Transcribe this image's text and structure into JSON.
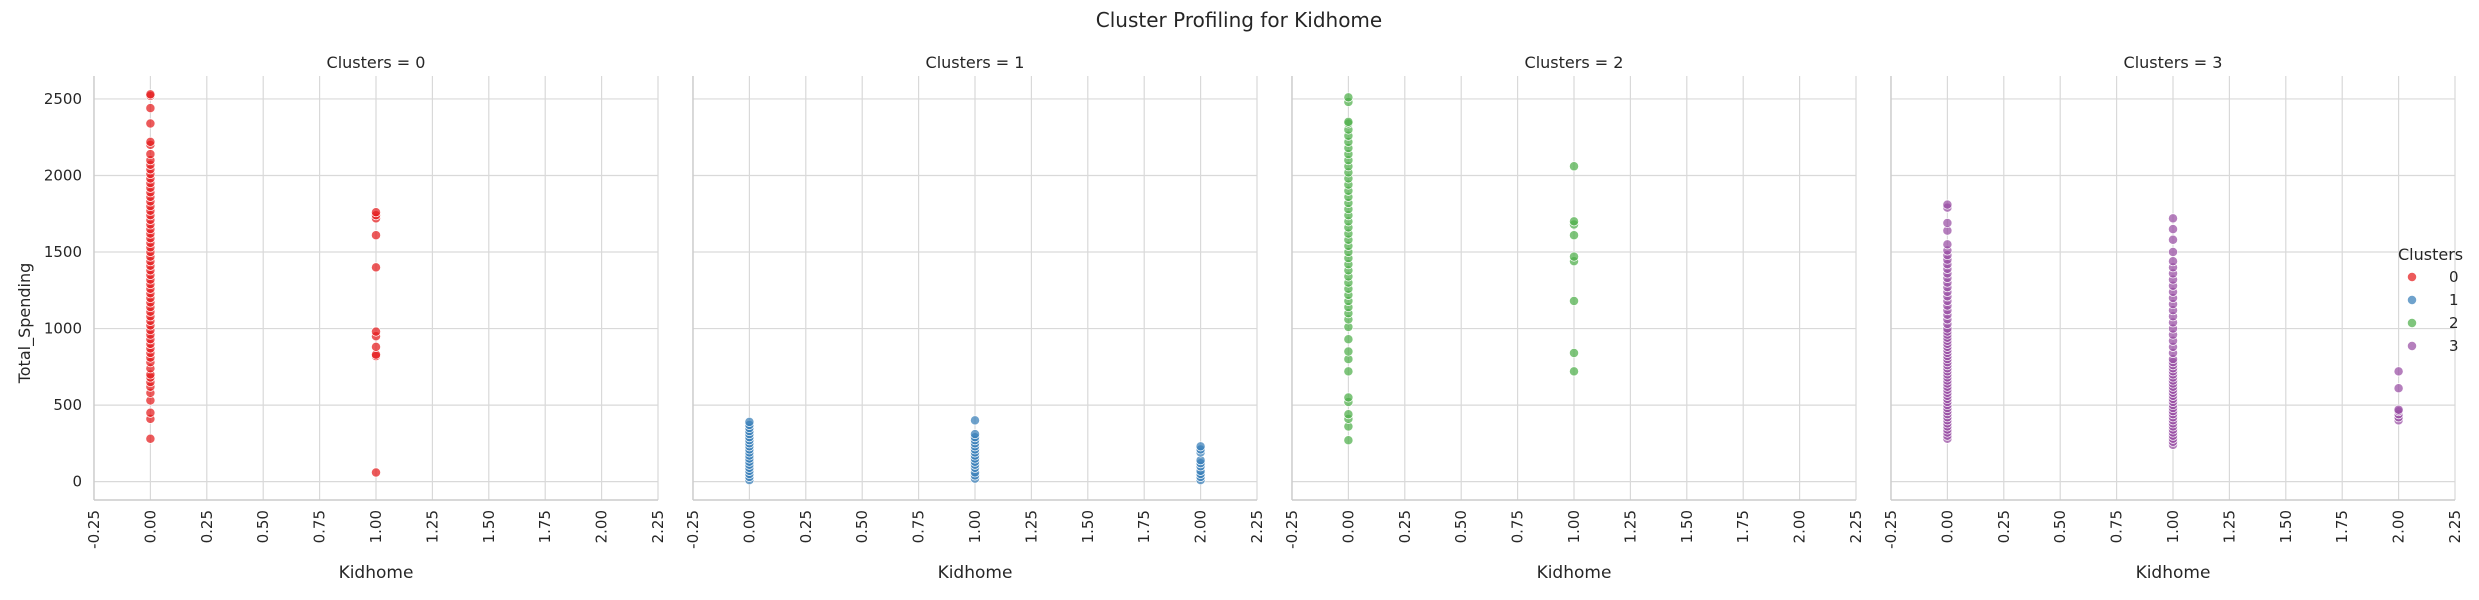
{
  "chart_data": {
    "type": "scatter",
    "suptitle": "Cluster Profiling for Kidhome",
    "xlabel": "Kidhome",
    "ylabel": "Total_Spending",
    "xlim": [
      -0.25,
      2.25
    ],
    "ylim": [
      -120,
      2650
    ],
    "xticks": [
      -0.25,
      0.0,
      0.25,
      0.5,
      0.75,
      1.0,
      1.25,
      1.5,
      1.75,
      2.0,
      2.25
    ],
    "xtick_labels": [
      "-0.25",
      "0.00",
      "0.25",
      "0.50",
      "0.75",
      "1.00",
      "1.25",
      "1.50",
      "1.75",
      "2.00",
      "2.25"
    ],
    "yticks": [
      0,
      500,
      1000,
      1500,
      2000,
      2500
    ],
    "ytick_labels": [
      "0",
      "500",
      "1000",
      "1500",
      "2000",
      "2500"
    ],
    "grid": true,
    "legend": {
      "title": "Clusters",
      "placement": "right",
      "entries": [
        {
          "label": "0",
          "color": "#e41a1c"
        },
        {
          "label": "1",
          "color": "#377eb8"
        },
        {
          "label": "2",
          "color": "#4daf4a"
        },
        {
          "label": "3",
          "color": "#984ea3"
        }
      ]
    },
    "panels": [
      {
        "title": "Clusters = 0",
        "color": "#e41a1c",
        "points": [
          {
            "x": 0,
            "y": [
              280,
              410,
              450,
              530,
              580,
              620,
              650,
              680,
              700,
              740,
              780,
              810,
              840,
              870,
              900,
              930,
              960,
              990,
              1020,
              1050,
              1080,
              1110,
              1140,
              1170,
              1200,
              1230,
              1260,
              1290,
              1320,
              1350,
              1380,
              1410,
              1440,
              1470,
              1500,
              1530,
              1560,
              1590,
              1620,
              1650,
              1680,
              1710,
              1740,
              1770,
              1800,
              1830,
              1860,
              1890,
              1920,
              1950,
              1980,
              2010,
              2040,
              2070,
              2100,
              2140,
              2200,
              2220,
              2340,
              2440,
              2520,
              2530
            ]
          },
          {
            "x": 1,
            "y": [
              60,
              820,
              830,
              880,
              950,
              980,
              1400,
              1610,
              1720,
              1740,
              1760
            ]
          }
        ]
      },
      {
        "title": "Clusters = 1",
        "color": "#377eb8",
        "points": [
          {
            "x": 0,
            "y": [
              10,
              30,
              50,
              70,
              90,
              110,
              130,
              150,
              170,
              190,
              210,
              230,
              250,
              270,
              290,
              310,
              330,
              350,
              370,
              390
            ]
          },
          {
            "x": 1,
            "y": [
              20,
              40,
              60,
              90,
              110,
              130,
              150,
              170,
              190,
              210,
              230,
              250,
              270,
              290,
              310,
              400
            ]
          },
          {
            "x": 2,
            "y": [
              10,
              30,
              50,
              70,
              100,
              120,
              140,
              190,
              210,
              230
            ]
          }
        ]
      },
      {
        "title": "Clusters = 2",
        "color": "#4daf4a",
        "points": [
          {
            "x": 0,
            "y": [
              270,
              360,
              410,
              440,
              520,
              550,
              720,
              800,
              850,
              930,
              1010,
              1060,
              1100,
              1140,
              1180,
              1220,
              1260,
              1300,
              1340,
              1380,
              1420,
              1460,
              1500,
              1540,
              1580,
              1620,
              1660,
              1700,
              1740,
              1780,
              1820,
              1860,
              1900,
              1940,
              1980,
              2020,
              2060,
              2100,
              2140,
              2180,
              2220,
              2260,
              2300,
              2340,
              2350,
              2480,
              2510
            ]
          },
          {
            "x": 1,
            "y": [
              720,
              840,
              1180,
              1440,
              1470,
              1610,
              1680,
              1700,
              2060
            ]
          }
        ]
      },
      {
        "title": "Clusters = 3",
        "color": "#984ea3",
        "points": [
          {
            "x": 0,
            "y": [
              280,
              300,
              320,
              340,
              360,
              380,
              400,
              420,
              440,
              460,
              480,
              500,
              520,
              540,
              560,
              580,
              600,
              620,
              640,
              660,
              680,
              700,
              720,
              740,
              760,
              780,
              800,
              820,
              840,
              860,
              880,
              900,
              920,
              940,
              960,
              980,
              1000,
              1030,
              1060,
              1090,
              1120,
              1150,
              1180,
              1210,
              1240,
              1270,
              1300,
              1330,
              1360,
              1390,
              1420,
              1450,
              1480,
              1510,
              1550,
              1640,
              1690,
              1790,
              1810
            ]
          },
          {
            "x": 1,
            "y": [
              240,
              260,
              280,
              300,
              320,
              340,
              360,
              380,
              400,
              420,
              440,
              460,
              480,
              500,
              520,
              540,
              560,
              580,
              600,
              620,
              640,
              660,
              680,
              700,
              720,
              740,
              760,
              780,
              800,
              840,
              880,
              920,
              960,
              1000,
              1040,
              1080,
              1120,
              1160,
              1200,
              1240,
              1280,
              1320,
              1360,
              1400,
              1440,
              1500,
              1580,
              1650,
              1720
            ]
          },
          {
            "x": 2,
            "y": [
              400,
              420,
              440,
              460,
              470,
              610,
              720
            ]
          }
        ]
      }
    ]
  }
}
